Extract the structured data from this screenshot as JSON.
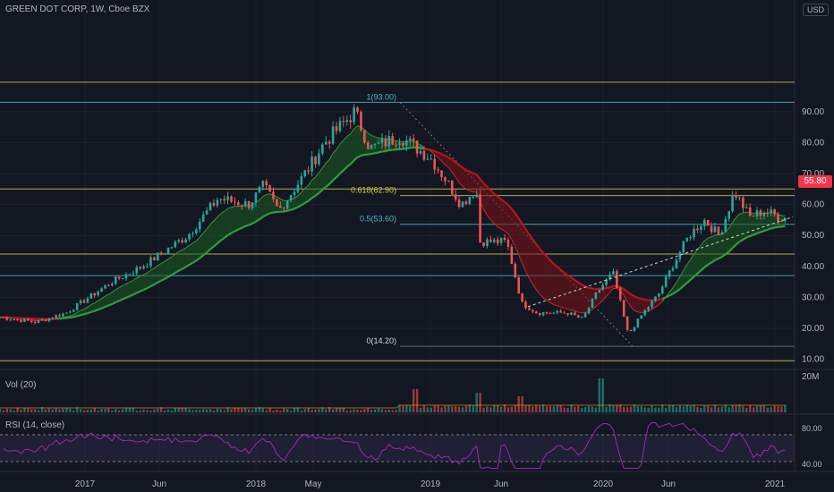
{
  "header": {
    "title": "GREEN DOT CORP, 1W, Cboe BZX"
  },
  "currency": "USD",
  "last_price": "55.80",
  "panes": {
    "volume_label": "Vol (20)",
    "volume_scale": "20M",
    "rsi_label": "RSI (14, close)"
  },
  "colors": {
    "bull": "#26a69a",
    "bear": "#ef5350",
    "ema_green": "#2e9e3f",
    "ema_red": "#b3151c",
    "fib_yellow": "#d4c44a",
    "fib_blue": "#4fb3c9",
    "rsi": "#9c27b0",
    "price_tag": "#f23645"
  },
  "chart_data": {
    "type": "candlestick",
    "title": "GREEN DOT CORP, 1W, Cboe BZX",
    "yaxis": {
      "ticks": [
        10,
        20,
        30,
        40,
        50,
        60,
        70,
        80,
        90
      ],
      "labels": [
        "10.00",
        "20.00",
        "30.00",
        "40.00",
        "50.00",
        "60.00",
        "70.00",
        "80.00",
        "90.00"
      ]
    },
    "xaxis": {
      "labels": [
        "2017",
        "Jun",
        "2018",
        "May",
        "2019",
        "Jun",
        "2020",
        "Jun",
        "2021"
      ]
    },
    "price_path": [
      {
        "t": "2016-09",
        "p": 24
      },
      {
        "t": "2016-12",
        "p": 22
      },
      {
        "t": "2017-02",
        "p": 25
      },
      {
        "t": "2017-05",
        "p": 35
      },
      {
        "t": "2017-07",
        "p": 40
      },
      {
        "t": "2017-10",
        "p": 50
      },
      {
        "t": "2017-12",
        "p": 62
      },
      {
        "t": "2018-02",
        "p": 60
      },
      {
        "t": "2018-03",
        "p": 66
      },
      {
        "t": "2018-04",
        "p": 58
      },
      {
        "t": "2018-06",
        "p": 72
      },
      {
        "t": "2018-07",
        "p": 80
      },
      {
        "t": "2018-08",
        "p": 85
      },
      {
        "t": "2018-09",
        "p": 90
      },
      {
        "t": "2018-10",
        "p": 78
      },
      {
        "t": "2018-12",
        "p": 82
      },
      {
        "t": "2019-02",
        "p": 75
      },
      {
        "t": "2019-03",
        "p": 68
      },
      {
        "t": "2019-04",
        "p": 60
      },
      {
        "t": "2019-05",
        "p": 65
      },
      {
        "t": "2019-05",
        "p": 48
      },
      {
        "t": "2019-07",
        "p": 48
      },
      {
        "t": "2019-08",
        "p": 28
      },
      {
        "t": "2019-09",
        "p": 25
      },
      {
        "t": "2019-11",
        "p": 25
      },
      {
        "t": "2019-12",
        "p": 23
      },
      {
        "t": "2020-01",
        "p": 32
      },
      {
        "t": "2020-02",
        "p": 38
      },
      {
        "t": "2020-03",
        "p": 18
      },
      {
        "t": "2020-04",
        "p": 25
      },
      {
        "t": "2020-05",
        "p": 31
      },
      {
        "t": "2020-06",
        "p": 41
      },
      {
        "t": "2020-07",
        "p": 50
      },
      {
        "t": "2020-08",
        "p": 55
      },
      {
        "t": "2020-09",
        "p": 50
      },
      {
        "t": "2020-10",
        "p": 64
      },
      {
        "t": "2020-11",
        "p": 56
      },
      {
        "t": "2020-12",
        "p": 58
      },
      {
        "t": "2021-01",
        "p": 55.8
      }
    ],
    "fibonacci": [
      {
        "label": "1(93.00)",
        "value": 93.0,
        "color": "blue"
      },
      {
        "label": "0.618(62.90)",
        "value": 62.9,
        "color": "yellow"
      },
      {
        "label": "0.5(53.60)",
        "value": 53.6,
        "color": "blue"
      },
      {
        "label": "0(14.20)",
        "value": 14.2,
        "color": "gray"
      }
    ],
    "horizontal_levels": [
      99.5,
      93.0,
      65.0,
      62.9,
      53.6,
      44.0,
      37.0,
      14.2,
      9.5
    ],
    "rsi": {
      "ticks": [
        80,
        40
      ],
      "labels": [
        "80.00",
        "40.00"
      ],
      "band": [
        70,
        30
      ]
    }
  }
}
